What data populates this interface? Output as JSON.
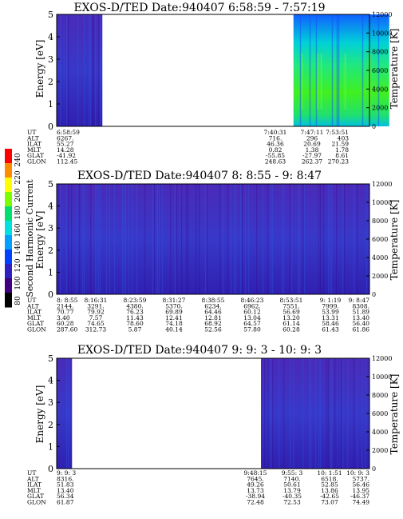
{
  "figure": {
    "colorbar": {
      "label": "Second Harmonic Current",
      "ticks": [
        "240",
        "220",
        "200",
        "180",
        "160",
        "140",
        "120",
        "100",
        "80"
      ],
      "colors": [
        "#ff0000",
        "#ff8c00",
        "#ffff00",
        "#7cfc00",
        "#00e070",
        "#00e0e0",
        "#00a0ff",
        "#0040ff",
        "#3020c0",
        "#400080",
        "#000000"
      ]
    }
  },
  "chart_data": [
    {
      "type": "heatmap",
      "title": "EXOS-D/TED   Date:940407  6:58:59 - 7:57:19",
      "ylabel": "Energy [eV]",
      "ylabel_right": "Temperature [K]",
      "ylim": [
        0,
        5
      ],
      "y2lim": [
        0,
        12000
      ],
      "yticks": [
        "0",
        "1",
        "2",
        "3",
        "4",
        "5"
      ],
      "y2ticks": [
        "0",
        "2000",
        "4000",
        "6000",
        "8000",
        "10000",
        "12000"
      ],
      "data_spans": [
        {
          "start": "6:58:59",
          "end": "7:07:00",
          "dominant_level": "low"
        },
        {
          "start": "7:40:31",
          "end": "7:57:19",
          "dominant_level": "high"
        }
      ],
      "rows": [
        {
          "label": "UT",
          "values": [
            "6:58:59",
            "7:40:31",
            "7:47:11",
            "7:53:51"
          ]
        },
        {
          "label": "ALT",
          "values": [
            "6267.",
            "716.",
            "296",
            "403"
          ]
        },
        {
          "label": "ILAT",
          "values": [
            "55.27",
            "46.36",
            "20.69",
            "21.59"
          ]
        },
        {
          "label": "MLT",
          "values": [
            "14.28",
            "0.82",
            "1.38",
            "1.78"
          ]
        },
        {
          "label": "GLAT",
          "values": [
            "-41.92",
            "-55.85",
            "-27.97",
            "8.61"
          ]
        },
        {
          "label": "GLON",
          "values": [
            "112.45",
            "248.63",
            "262.37",
            "270.23"
          ]
        }
      ]
    },
    {
      "type": "heatmap",
      "title": "EXOS-D/TED   Date:940407  8: 8:55 - 9: 8:47",
      "ylabel": "Energy [eV]",
      "ylabel_right": "Temperature [K]",
      "ylim": [
        0,
        5
      ],
      "y2lim": [
        0,
        12000
      ],
      "yticks": [
        "0",
        "1",
        "2",
        "3",
        "4",
        "5"
      ],
      "y2ticks": [
        "0",
        "2000",
        "4000",
        "6000",
        "8000",
        "10000",
        "12000"
      ],
      "data_spans": [
        {
          "start": "8: 8:55",
          "end": "9: 8:47",
          "dominant_level": "low"
        }
      ],
      "rows": [
        {
          "label": "UT",
          "values": [
            "8: 8:55",
            "8:16:31",
            "8:23:59",
            "8:31:27",
            "8:38:55",
            "8:46:23",
            "8:53:51",
            "9: 1:19",
            "9: 8:47"
          ]
        },
        {
          "label": "ALT",
          "values": [
            "2144.",
            "3291.",
            "4380.",
            "5370.",
            "6234.",
            "6962.",
            "7551.",
            "7999.",
            "8308."
          ]
        },
        {
          "label": "ILAT",
          "values": [
            "70.77",
            "79.92",
            "76.23",
            "69.89",
            "64.46",
            "60.12",
            "56.69",
            "53.99",
            "51.89"
          ]
        },
        {
          "label": "MLT",
          "values": [
            "3.40",
            "7.57",
            "11.43",
            "12.41",
            "12.81",
            "13.04",
            "13.20",
            "13.31",
            "13.40"
          ]
        },
        {
          "label": "GLAT",
          "values": [
            "60.28",
            "74.65",
            "78.60",
            "74.18",
            "68.92",
            "64.57",
            "61.14",
            "58.46",
            "56.40"
          ]
        },
        {
          "label": "GLON",
          "values": [
            "287.60",
            "312.73",
            "5.87",
            "40.14",
            "52.56",
            "57.80",
            "60.28",
            "61.43",
            "61.86"
          ]
        }
      ]
    },
    {
      "type": "heatmap",
      "title": "EXOS-D/TED   Date:940407  9: 9: 3 - 10: 9: 3",
      "ylabel": "Energy [eV]",
      "ylabel_right": "Temperature [K]",
      "ylim": [
        0,
        5
      ],
      "y2lim": [
        0,
        12000
      ],
      "yticks": [
        "0",
        "1",
        "2",
        "3",
        "4",
        "5"
      ],
      "y2ticks": [
        "0",
        "2000",
        "4000",
        "6000",
        "8000",
        "10000",
        "12000"
      ],
      "data_spans": [
        {
          "start": "9: 9: 3",
          "end": "9:12:00",
          "dominant_level": "low"
        },
        {
          "start": "9:48:15",
          "end": "10: 9: 3",
          "dominant_level": "low"
        }
      ],
      "rows": [
        {
          "label": "UT",
          "values": [
            "9: 9: 3",
            "9:48:15",
            "9:55: 3",
            "10: 1:51",
            "10: 9: 3"
          ]
        },
        {
          "label": "ALT",
          "values": [
            "8316.",
            "7645.",
            "7140.",
            "6518.",
            "5737."
          ]
        },
        {
          "label": "ILAT",
          "values": [
            "51.83",
            "49.26",
            "50.61",
            "52.85",
            "56.46"
          ]
        },
        {
          "label": "MLT",
          "values": [
            "13.40",
            "13.73",
            "13.79",
            "13.86",
            "13.95"
          ]
        },
        {
          "label": "GLAT",
          "values": [
            "56.34",
            "-38.94",
            "-40.35",
            "-42.65",
            "-46.37"
          ]
        },
        {
          "label": "GLON",
          "values": [
            "61.87",
            "72.48",
            "72.53",
            "73.07",
            "74.49"
          ]
        }
      ]
    }
  ]
}
